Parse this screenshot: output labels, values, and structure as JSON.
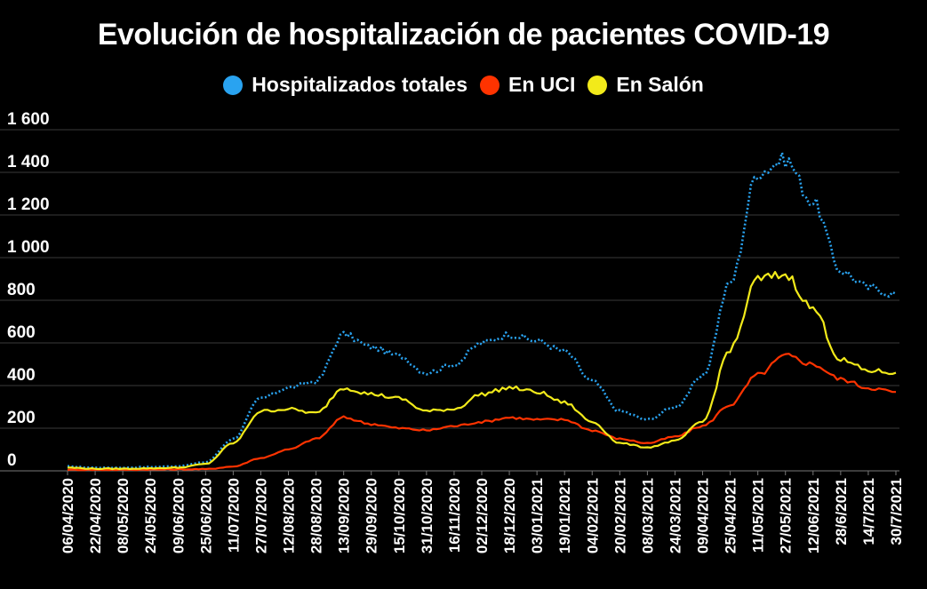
{
  "chart_data": {
    "type": "line",
    "title": "Evolución de hospitalización de pacientes COVID-19",
    "xlabel": "",
    "ylabel": "",
    "ylim": [
      0,
      1600
    ],
    "yticks": [
      0,
      200,
      400,
      600,
      800,
      1000,
      1200,
      1400,
      1600
    ],
    "ytick_labels": [
      "0",
      "200",
      "400",
      "600",
      "800",
      "1 000",
      "1 200",
      "1 400",
      "1 600"
    ],
    "grid": "horizontal",
    "legend_position": "top-center",
    "x": [
      "06/04/2020",
      "22/04/2020",
      "08/05/2020",
      "24/05/2020",
      "09/06/2020",
      "25/06/2020",
      "11/07/2020",
      "27/07/2020",
      "12/08/2020",
      "28/08/2020",
      "13/09/2020",
      "29/09/2020",
      "15/10/2020",
      "31/10/2020",
      "16/11/2020",
      "02/12/2020",
      "18/12/2020",
      "03/01/2021",
      "19/01/2021",
      "04/02/2021",
      "20/02/2021",
      "08/03/2021",
      "24/03/2021",
      "09/04/2021",
      "25/04/2021",
      "11/05/2021",
      "27/05/2021",
      "12/06/2021",
      "28/6/2021",
      "14/7/2021",
      "30/7/2021"
    ],
    "series": [
      {
        "name": "Hospitalizados totales",
        "color": "#29a3f0",
        "style": "dotted",
        "values": [
          20,
          15,
          15,
          18,
          22,
          40,
          150,
          340,
          390,
          420,
          640,
          580,
          540,
          460,
          500,
          600,
          640,
          610,
          560,
          420,
          280,
          240,
          300,
          440,
          880,
          1400,
          1460,
          1260,
          940,
          860,
          830
        ]
      },
      {
        "name": "En UCI",
        "color": "#ff3300",
        "style": "solid",
        "values": [
          5,
          5,
          5,
          6,
          7,
          8,
          20,
          60,
          100,
          150,
          250,
          220,
          200,
          190,
          210,
          230,
          250,
          240,
          240,
          190,
          150,
          130,
          160,
          210,
          310,
          450,
          540,
          500,
          430,
          390,
          370
        ]
      },
      {
        "name": "En Salón",
        "color": "#f2ea1a",
        "style": "solid",
        "values": [
          15,
          10,
          10,
          12,
          15,
          32,
          130,
          280,
          290,
          270,
          390,
          360,
          340,
          280,
          290,
          360,
          390,
          370,
          320,
          230,
          130,
          110,
          140,
          230,
          570,
          900,
          920,
          760,
          520,
          470,
          460
        ]
      }
    ]
  }
}
